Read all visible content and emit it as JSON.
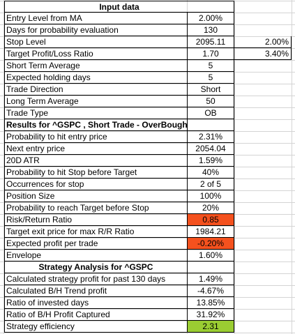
{
  "colors": {
    "red_highlight": "#f4511e",
    "green_highlight": "#9acd32",
    "gridline": "#d4d4d4"
  },
  "input": {
    "title": "Input data",
    "rows": [
      {
        "label": "Entry Level from MA",
        "value": "2.00%"
      },
      {
        "label": "Days for probability evaluation",
        "value": "130"
      },
      {
        "label": "Stop Level",
        "value": "2095.11",
        "extra": "2.00%"
      },
      {
        "label": "Target Profit/Loss Ratio",
        "value": "1.70",
        "extra": "3.40%"
      },
      {
        "label": "Short Term Average",
        "value": "5"
      },
      {
        "label": "Expected holding days",
        "value": "5"
      },
      {
        "label": "Trade Direction",
        "value": "Short"
      },
      {
        "label": "Long Term Average",
        "value": "50"
      },
      {
        "label": "Trade Type",
        "value": "OB"
      }
    ]
  },
  "results": {
    "title": "Results for ^GSPC , Short Trade - OverBought",
    "rows": [
      {
        "label": "Probability to hit entry price",
        "value": "2.31%"
      },
      {
        "label": "Next entry price",
        "value": "2054.04"
      },
      {
        "label": "20D ATR",
        "value": "1.59%"
      },
      {
        "label": "Probability to hit Stop before Target",
        "value": "40%"
      },
      {
        "label": "Occurrences for stop",
        "value": "2 of 5"
      },
      {
        "label": "Position Size",
        "value": "100%"
      },
      {
        "label": "Probability to reach Target before Stop",
        "value": "20%"
      },
      {
        "label": "Risk/Return Ratio",
        "value": "0.85",
        "highlight": "red"
      },
      {
        "label": "Target exit price for max R/R Ratio",
        "value": "1984.21"
      },
      {
        "label": "Expected profit per trade",
        "value": "-0.20%",
        "highlight": "red"
      },
      {
        "label": "Envelope",
        "value": "1.60%"
      }
    ]
  },
  "strategy": {
    "title": "Strategy Analysis for ^GSPC",
    "rows": [
      {
        "label": "Calculated strategy profit for past 130 days",
        "value": "1.49%"
      },
      {
        "label": "Calculated B/H Trend profit",
        "value": "-4.67%"
      },
      {
        "label": "Ratio of invested days",
        "value": "13.85%"
      },
      {
        "label": "Ratio of B/H Profit Captured",
        "value": "31.92%"
      },
      {
        "label": "Strategy efficiency",
        "value": "2.31",
        "highlight": "green"
      }
    ]
  }
}
